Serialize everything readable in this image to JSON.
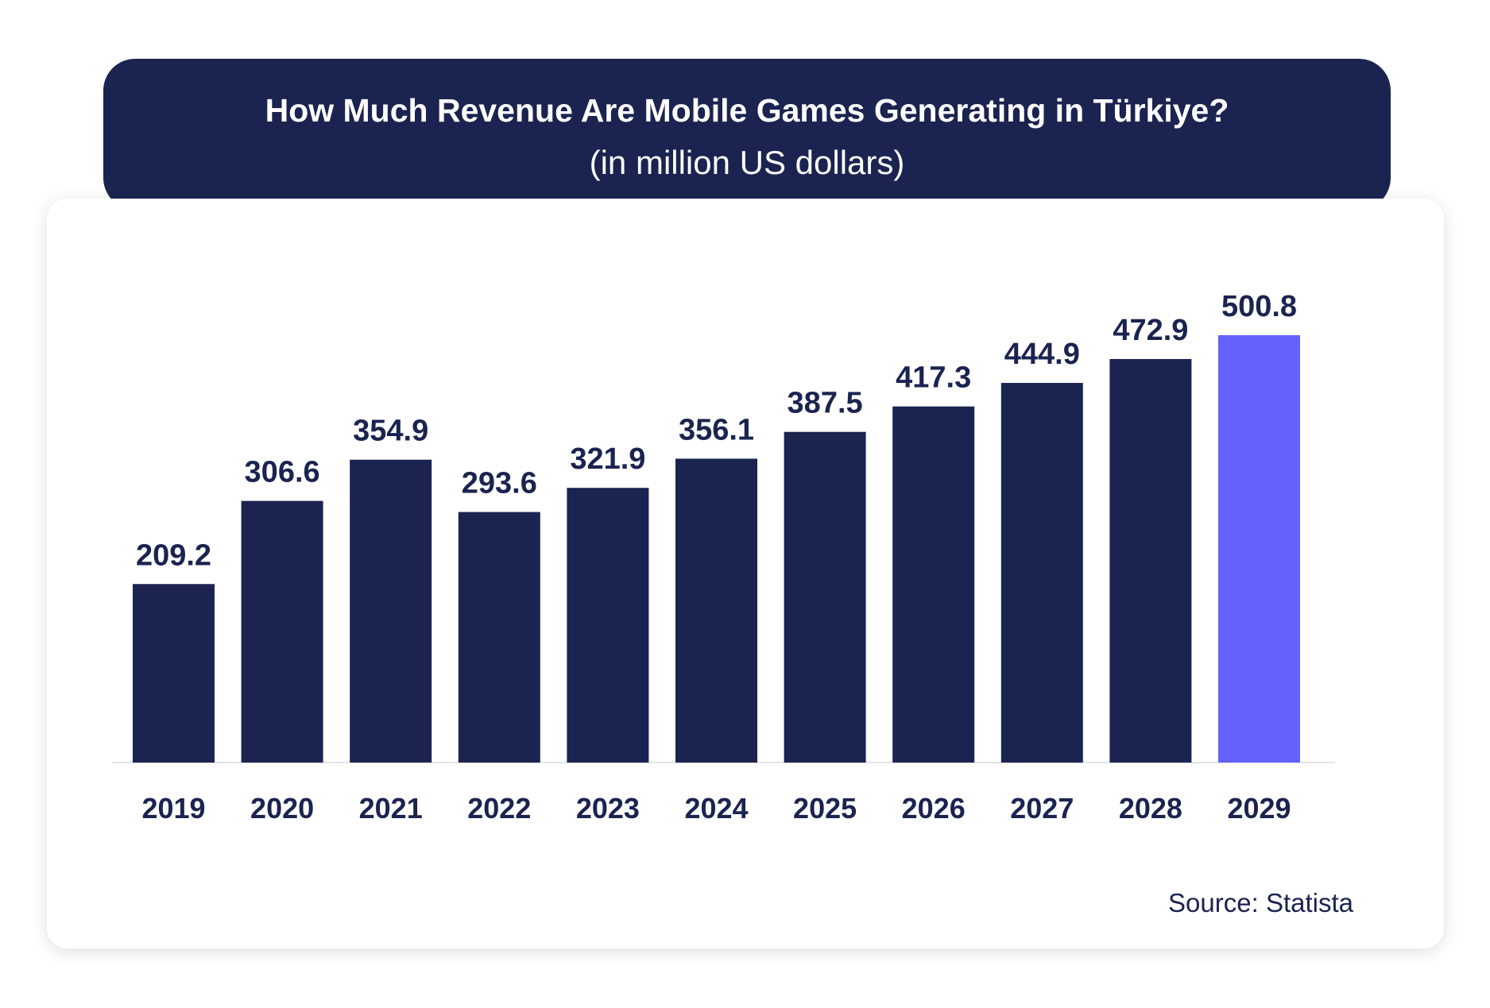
{
  "chart_data": {
    "type": "bar",
    "title": "How Much Revenue Are Mobile Games Generating in Türkiye?",
    "subtitle": "(in million US dollars)",
    "categories": [
      "2019",
      "2020",
      "2021",
      "2022",
      "2023",
      "2024",
      "2025",
      "2026",
      "2027",
      "2028",
      "2029"
    ],
    "values": [
      209.2,
      306.6,
      354.9,
      293.6,
      321.9,
      356.1,
      387.5,
      417.3,
      444.9,
      472.9,
      500.8
    ],
    "colors": [
      "#1b2350",
      "#1b2350",
      "#1b2350",
      "#1b2350",
      "#1b2350",
      "#1b2350",
      "#1b2350",
      "#1b2350",
      "#1b2350",
      "#1b2350",
      "#6461fc"
    ],
    "source": "Source: Statista"
  }
}
